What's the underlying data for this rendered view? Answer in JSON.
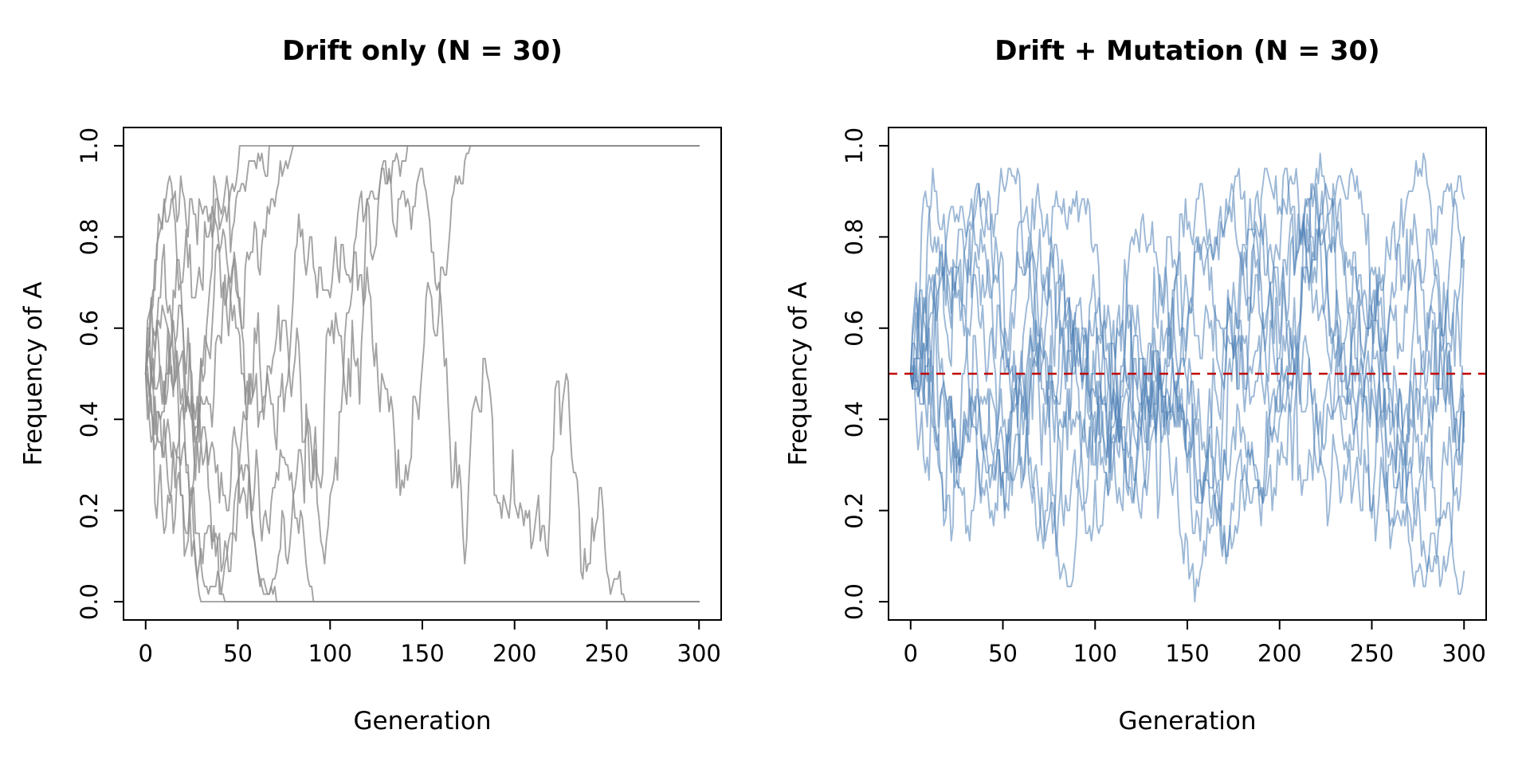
{
  "figure": {
    "background_color": "#FFFFFF",
    "axis_color": "#000000",
    "n_panels": 2
  },
  "chart_data": [
    {
      "type": "line",
      "title": "Drift only (N = 30)",
      "xlabel": "Generation",
      "ylabel": "Frequency of A",
      "xlim": [
        0,
        300
      ],
      "ylim": [
        0,
        1
      ],
      "x_ticks": [
        0,
        50,
        100,
        150,
        200,
        250,
        300
      ],
      "y_ticks": [
        0.0,
        0.2,
        0.4,
        0.6,
        0.8,
        1.0
      ],
      "grid": false,
      "legend": "none",
      "n_trajectories": 10,
      "population_size": 30,
      "generations": 300,
      "initial_frequency": 0.5,
      "mutation_rate": 0,
      "line_color": "#8C8C8C",
      "line_opacity": 0.8,
      "seed": 987654321,
      "description": "Ten Wright-Fisher allele-frequency trajectories starting at p=0.5; all drift to fixation (1.0) or loss (0.0) and stay absorbed"
    },
    {
      "type": "line",
      "title": "Drift + Mutation (N = 30)",
      "xlabel": "Generation",
      "ylabel": "Frequency of A",
      "xlim": [
        0,
        300
      ],
      "ylim": [
        0,
        1
      ],
      "x_ticks": [
        0,
        50,
        100,
        150,
        200,
        250,
        300
      ],
      "y_ticks": [
        0.0,
        0.2,
        0.4,
        0.6,
        0.8,
        1.0
      ],
      "grid": false,
      "legend": "none",
      "n_trajectories": 10,
      "population_size": 30,
      "generations": 300,
      "initial_frequency": 0.5,
      "mutation_rate": 0.02,
      "line_color": "#4A7EB5",
      "line_opacity": 0.55,
      "seed": 24681357,
      "reference_line": {
        "value": 0.5,
        "color": "#C00000",
        "dashed": true,
        "width": 2.5
      },
      "description": "Ten Wright-Fisher allele-frequency trajectories with symmetric mutation; frequencies fluctuate around the equilibrium 0.5 (red dashed line) without permanent fixation"
    }
  ]
}
